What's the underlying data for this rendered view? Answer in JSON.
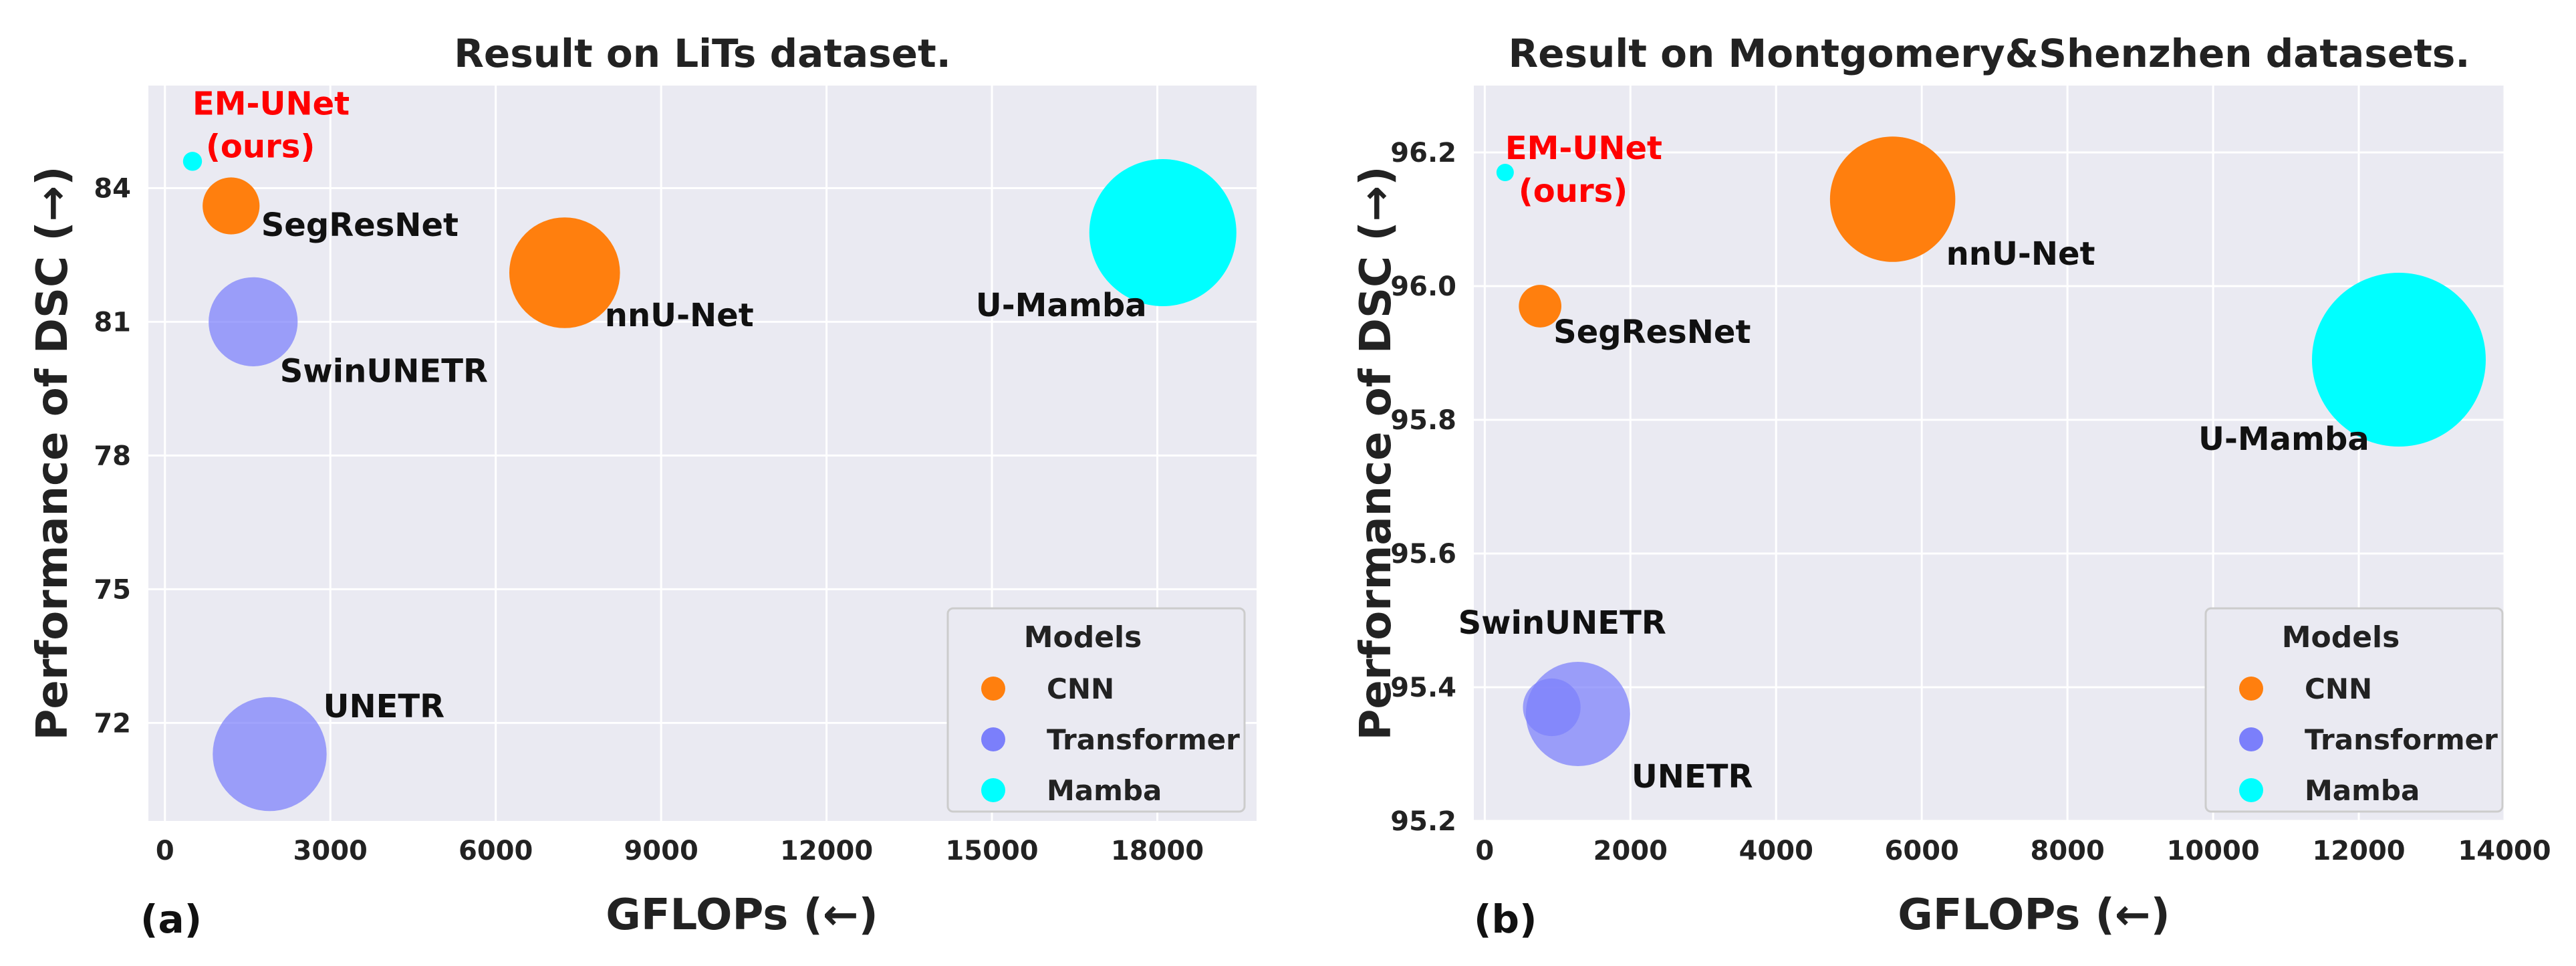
{
  "figure": {
    "colors": {
      "CNN": "#ff7f0e",
      "Transformer": "#7b7ffb",
      "Mamba": "#00ffff",
      "ours_label": "#ff0000",
      "plot_bg": "#eaeaf2",
      "grid": "#ffffff"
    }
  },
  "chart_data": [
    {
      "type": "scatter",
      "panel_tag": "(a)",
      "title": "Result on LiTs dataset.",
      "xlabel": "GFLOPs (←)",
      "ylabel": "Performance of DSC (→)",
      "xlim": [
        -300,
        19800
      ],
      "ylim": [
        69.8,
        86.3
      ],
      "xticks": [
        0,
        3000,
        6000,
        9000,
        12000,
        15000,
        18000
      ],
      "yticks": [
        72,
        75,
        78,
        81,
        84
      ],
      "grid": true,
      "legend": {
        "title": "Models",
        "entries": [
          "CNN",
          "Transformer",
          "Mamba"
        ],
        "placement": "lower-right"
      },
      "points": [
        {
          "name": "EM-UNet\n(ours)",
          "display_lines": [
            "EM-UNet",
            "(ours)"
          ],
          "category": "Mamba",
          "x": 500,
          "y": 84.6,
          "size": 1,
          "ours": true
        },
        {
          "name": "SegResNet",
          "display_lines": [
            "SegResNet"
          ],
          "category": "CNN",
          "x": 1200,
          "y": 83.6,
          "size": 9
        },
        {
          "name": "SwinUNETR",
          "display_lines": [
            "SwinUNETR"
          ],
          "category": "Transformer",
          "x": 1600,
          "y": 81.0,
          "size": 22
        },
        {
          "name": "nnU-Net",
          "display_lines": [
            "nnU-Net"
          ],
          "category": "CNN",
          "x": 7250,
          "y": 82.1,
          "size": 34
        },
        {
          "name": "U-Mamba",
          "display_lines": [
            "U-Mamba"
          ],
          "category": "Mamba",
          "x": 18100,
          "y": 83.0,
          "size": 60
        },
        {
          "name": "UNETR",
          "display_lines": [
            "UNETR"
          ],
          "category": "Transformer",
          "x": 1900,
          "y": 71.3,
          "size": 36
        }
      ]
    },
    {
      "type": "scatter",
      "panel_tag": "(b)",
      "title": "Result on Montgomery&Shenzhen datasets.",
      "xlabel": "GFLOPs (←)",
      "ylabel": "Performance of DSC (→)",
      "xlim": [
        -150,
        14000
      ],
      "ylim": [
        95.2,
        96.3
      ],
      "xticks": [
        0,
        2000,
        4000,
        6000,
        8000,
        10000,
        12000,
        14000
      ],
      "yticks": [
        95.2,
        95.4,
        95.6,
        95.8,
        96.0,
        96.2
      ],
      "grid": true,
      "legend": {
        "title": "Models",
        "entries": [
          "CNN",
          "Transformer",
          "Mamba"
        ],
        "placement": "lower-right"
      },
      "points": [
        {
          "name": "EM-UNet\n(ours)",
          "display_lines": [
            "EM-UNet",
            "(ours)"
          ],
          "category": "Mamba",
          "x": 280,
          "y": 96.17,
          "size": 1,
          "ours": true
        },
        {
          "name": "SegResNet",
          "display_lines": [
            "SegResNet"
          ],
          "category": "CNN",
          "x": 760,
          "y": 95.97,
          "size": 6
        },
        {
          "name": "nnU-Net",
          "display_lines": [
            "nnU-Net"
          ],
          "category": "CNN",
          "x": 5600,
          "y": 96.13,
          "size": 52
        },
        {
          "name": "U-Mamba",
          "display_lines": [
            "U-Mamba"
          ],
          "category": "Mamba",
          "x": 12550,
          "y": 95.89,
          "size": 100
        },
        {
          "name": "SwinUNETR",
          "display_lines": [
            "SwinUNETR"
          ],
          "category": "Transformer",
          "x": 920,
          "y": 95.37,
          "size": 11
        },
        {
          "name": "UNETR",
          "display_lines": [
            "UNETR"
          ],
          "category": "Transformer",
          "x": 1280,
          "y": 95.36,
          "size": 36
        }
      ]
    }
  ]
}
